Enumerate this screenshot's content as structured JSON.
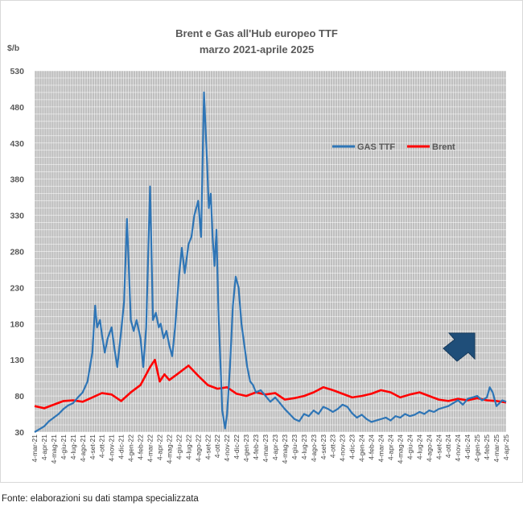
{
  "chart_data": {
    "type": "line",
    "title": "Brent e Gas all'Hub europeo TTF",
    "subtitle": "marzo 2021-aprile 2025",
    "ylabel": "$/b",
    "ylim": [
      30,
      530
    ],
    "yticks": [
      30,
      80,
      130,
      180,
      230,
      280,
      330,
      380,
      430,
      480,
      530
    ],
    "xrange": [
      0,
      49
    ],
    "xticks": [
      "4-mar-21",
      "4-apr-21",
      "4-mag-21",
      "4-giu-21",
      "4-lug-21",
      "4-ago-21",
      "4-set-21",
      "4-ott-21",
      "4-nov-21",
      "4-dic-21",
      "4-gen-22",
      "4-feb-22",
      "4-mar-22",
      "4-apr-22",
      "4-mag-22",
      "4-giu-22",
      "4-lug-22",
      "4-ago-22",
      "4-set-22",
      "4-ott-22",
      "4-nov-22",
      "4-dic-22",
      "4-gen-23",
      "4-feb-23",
      "4-mar-23",
      "4-apr-23",
      "4-mag-23",
      "4-giu-23",
      "4-lug-23",
      "4-ago-23",
      "4-set-23",
      "4-ott-23",
      "4-nov-23",
      "4-dic-23",
      "4-gen-24",
      "4-feb-24",
      "4-mar-24",
      "4-apr-24",
      "4-mag-24",
      "4-giu-24",
      "4-lug-24",
      "4-ago-24",
      "4-set-24",
      "4-ott-24",
      "4-nov-24",
      "4-dic-24",
      "4-gen-25",
      "4-feb-25",
      "4-mar-25",
      "4-apr-25"
    ],
    "grid": true,
    "legend_position": "top-right",
    "annotation": "up-right arrow",
    "series": [
      {
        "name": "GAS TTF",
        "color": "#2e75b6",
        "x": [
          0,
          0.5,
          1,
          1.5,
          2,
          2.5,
          3,
          3.5,
          4,
          4.5,
          5,
          5.5,
          6,
          6.3,
          6.5,
          6.8,
          7,
          7.3,
          7.6,
          8,
          8.3,
          8.6,
          9,
          9.3,
          9.6,
          10,
          10.3,
          10.6,
          11,
          11.3,
          11.6,
          12,
          12.3,
          12.6,
          12.9,
          13.1,
          13.4,
          13.7,
          14,
          14.3,
          14.6,
          15,
          15.3,
          15.6,
          16,
          16.3,
          16.6,
          17,
          17.3,
          17.6,
          17.9,
          18.1,
          18.3,
          18.5,
          18.7,
          18.9,
          19.1,
          19.3,
          19.5,
          19.8,
          20,
          20.3,
          20.6,
          20.9,
          21.2,
          21.5,
          21.8,
          22.1,
          22.4,
          22.7,
          23,
          23.5,
          24,
          24.5,
          25,
          25.5,
          26,
          26.5,
          27,
          27.5,
          28,
          28.5,
          29,
          29.5,
          30,
          30.5,
          31,
          31.5,
          32,
          32.5,
          33,
          33.5,
          34,
          34.5,
          35,
          35.5,
          36,
          36.5,
          37,
          37.5,
          38,
          38.5,
          39,
          39.5,
          40,
          40.5,
          41,
          41.5,
          42,
          42.5,
          43,
          43.5,
          44,
          44.5,
          45,
          45.5,
          46,
          46.5,
          47,
          47.3,
          47.6,
          48,
          48.3,
          48.6,
          49
        ],
        "values": [
          30,
          34,
          38,
          45,
          50,
          55,
          62,
          67,
          70,
          78,
          85,
          100,
          140,
          205,
          175,
          185,
          165,
          140,
          160,
          175,
          145,
          120,
          170,
          210,
          325,
          185,
          170,
          185,
          160,
          120,
          175,
          370,
          185,
          195,
          175,
          180,
          160,
          170,
          150,
          135,
          175,
          245,
          285,
          250,
          290,
          300,
          330,
          350,
          300,
          500,
          410,
          340,
          360,
          300,
          260,
          310,
          200,
          130,
          60,
          35,
          55,
          120,
          205,
          245,
          230,
          180,
          150,
          120,
          100,
          95,
          85,
          88,
          80,
          72,
          78,
          70,
          62,
          55,
          48,
          45,
          55,
          52,
          60,
          55,
          65,
          62,
          58,
          62,
          68,
          65,
          56,
          50,
          54,
          48,
          44,
          46,
          48,
          50,
          46,
          52,
          50,
          55,
          52,
          54,
          58,
          55,
          60,
          58,
          62,
          64,
          66,
          70,
          74,
          68,
          76,
          78,
          80,
          74,
          78,
          92,
          85,
          66,
          70,
          74,
          72
        ]
      },
      {
        "name": "Brent",
        "color": "#ff0000",
        "x": [
          0,
          1,
          2,
          3,
          4,
          5,
          6,
          7,
          8,
          9,
          10,
          11,
          12,
          12.5,
          13,
          13.5,
          14,
          15,
          16,
          17,
          18,
          19,
          20,
          21,
          22,
          23,
          24,
          25,
          26,
          27,
          28,
          29,
          30,
          31,
          32,
          33,
          34,
          35,
          36,
          37,
          38,
          39,
          40,
          41,
          42,
          43,
          44,
          45,
          46,
          47,
          48,
          49
        ],
        "values": [
          66,
          63,
          68,
          73,
          74,
          72,
          78,
          84,
          82,
          73,
          85,
          95,
          120,
          130,
          100,
          110,
          102,
          112,
          122,
          108,
          95,
          90,
          92,
          83,
          80,
          85,
          82,
          84,
          75,
          77,
          80,
          85,
          92,
          88,
          83,
          78,
          80,
          83,
          88,
          85,
          78,
          82,
          85,
          80,
          75,
          73,
          76,
          74,
          77,
          74,
          73,
          71
        ]
      }
    ]
  }
}
